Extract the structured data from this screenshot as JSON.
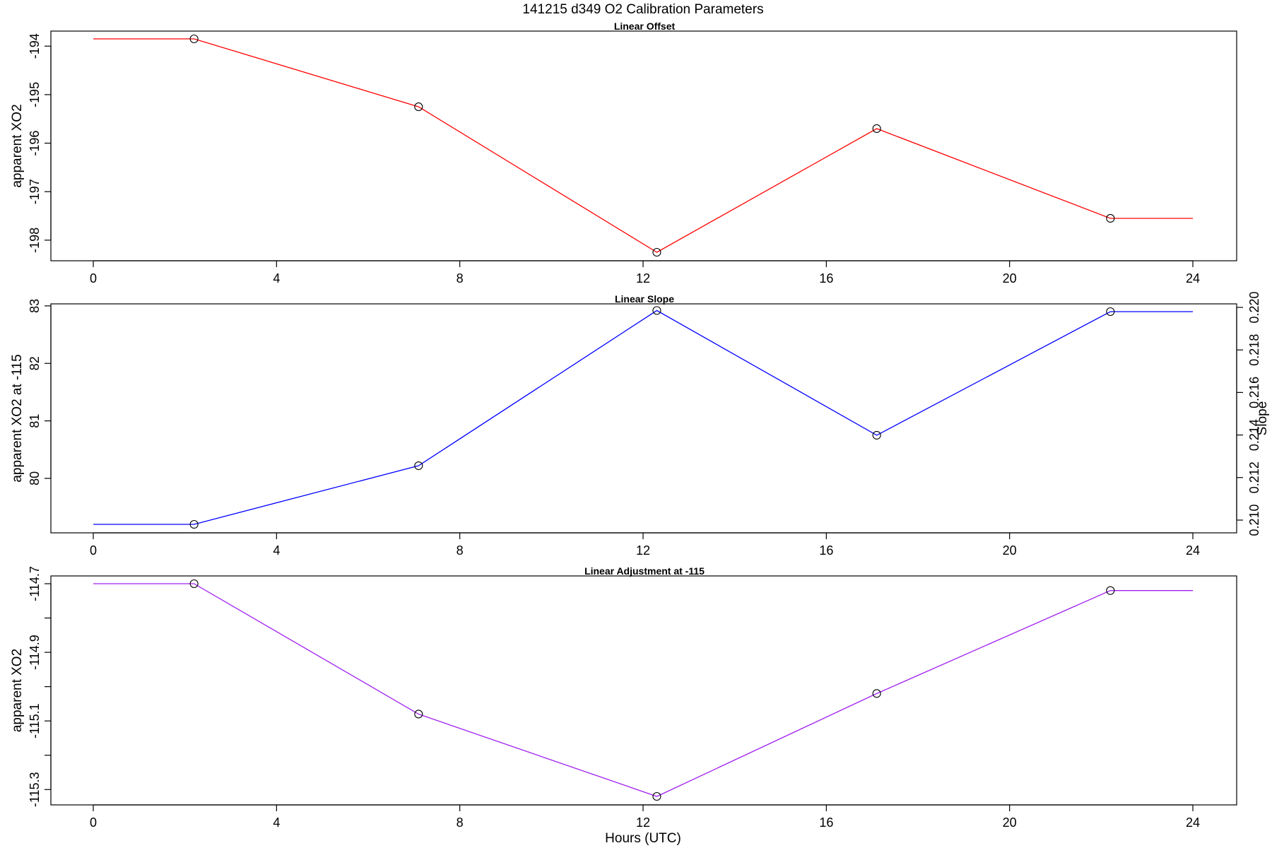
{
  "figure": {
    "title": "141215   d349   O2 Calibration Parameters",
    "xlabel": "Hours (UTC)"
  },
  "chart_data": [
    {
      "type": "line",
      "title": "Linear Offset",
      "xlabel": "",
      "ylabel": "apparent XO2",
      "xlim": [
        0,
        24
      ],
      "ylim": [
        -198.25,
        -193.85
      ],
      "x_ticks": [
        0,
        4,
        8,
        12,
        16,
        20,
        24
      ],
      "y_ticks": [
        -194,
        -195,
        -196,
        -197,
        -198
      ],
      "y_tick_labels": [
        "-194",
        "-195",
        "-196",
        "-197",
        "-198"
      ],
      "color": "#ff0000",
      "series": [
        {
          "x": [
            0,
            2.2,
            7.1,
            12.3,
            17.1,
            22.2,
            24
          ],
          "y": [
            -193.85,
            -193.85,
            -195.25,
            -198.25,
            -195.7,
            -197.55,
            -197.55
          ],
          "markers": [
            false,
            true,
            true,
            true,
            true,
            true,
            false
          ]
        }
      ]
    },
    {
      "type": "line",
      "title": "Linear Slope",
      "xlabel": "",
      "ylabel": "apparent XO2 at -115",
      "y2label": "Slope",
      "xlim": [
        0,
        24
      ],
      "ylim": [
        79.2,
        82.9
      ],
      "y2lim": [
        0.2098,
        0.2198
      ],
      "x_ticks": [
        0,
        4,
        8,
        12,
        16,
        20,
        24
      ],
      "y_ticks": [
        80,
        81,
        82,
        83
      ],
      "y_tick_labels": [
        "80",
        "81",
        "82",
        "83"
      ],
      "y2_ticks": [
        0.21,
        0.212,
        0.214,
        0.216,
        0.218,
        0.22
      ],
      "y2_tick_labels": [
        "0.210",
        "0.212",
        "0.214",
        "0.216",
        "0.218",
        "0.220"
      ],
      "color": "#0000ff",
      "series": [
        {
          "x": [
            0,
            2.2,
            7.1,
            12.3,
            17.1,
            22.2,
            24
          ],
          "y": [
            79.2,
            79.2,
            80.22,
            82.92,
            80.75,
            82.9,
            82.9
          ],
          "markers": [
            false,
            true,
            true,
            true,
            true,
            true,
            false
          ]
        }
      ]
    },
    {
      "type": "line",
      "title": "Linear Adjustment at -115",
      "xlabel": "Hours (UTC)",
      "ylabel": "apparent XO2",
      "xlim": [
        0,
        24
      ],
      "ylim": [
        -115.32,
        -114.7
      ],
      "x_ticks": [
        0,
        4,
        8,
        12,
        16,
        20,
        24
      ],
      "y_ticks": [
        -114.7,
        -114.8,
        -114.9,
        -115.0,
        -115.1,
        -115.2,
        -115.3
      ],
      "y_tick_labels": [
        "-114.7",
        "",
        "-114.9",
        "",
        "-115.1",
        "",
        "-115.3"
      ],
      "color": "#a020f0",
      "series": [
        {
          "x": [
            0,
            2.2,
            7.1,
            12.3,
            17.1,
            22.2,
            24
          ],
          "y": [
            -114.7,
            -114.7,
            -115.08,
            -115.32,
            -115.02,
            -114.72,
            -114.72
          ],
          "markers": [
            false,
            true,
            true,
            true,
            true,
            true,
            false
          ]
        }
      ]
    }
  ]
}
